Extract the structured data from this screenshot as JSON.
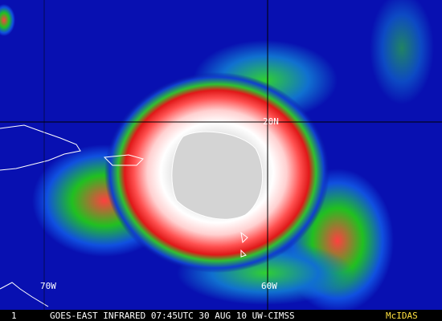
{
  "labels": {
    "lat": "20N",
    "lon_west": "70W",
    "lon_east": "60W"
  },
  "footer": {
    "frame": "1",
    "caption": "GOES-EAST INFRARED 07:45UTC 30 AUG 10 UW-CIMSS",
    "brand": "McIDAS"
  }
}
